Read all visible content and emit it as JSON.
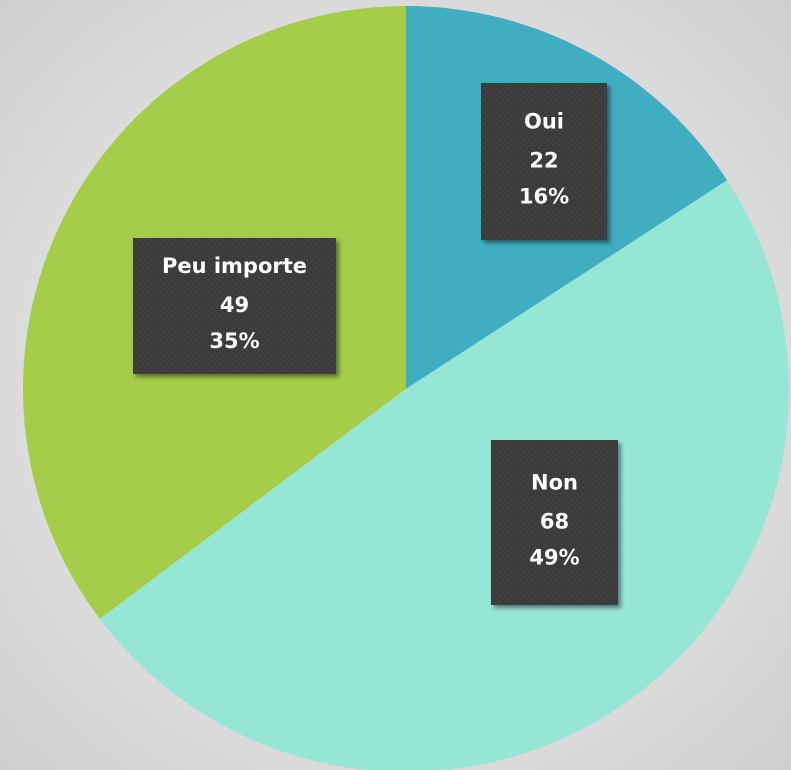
{
  "chart_data": {
    "type": "pie",
    "categories": [
      "Oui",
      "Non",
      "Peu importe"
    ],
    "values": [
      22,
      68,
      49
    ],
    "percent_labels": [
      "16%",
      "49%",
      "35%"
    ],
    "colors": [
      "#41adc0",
      "#96e6d6",
      "#a5cd4a"
    ]
  }
}
